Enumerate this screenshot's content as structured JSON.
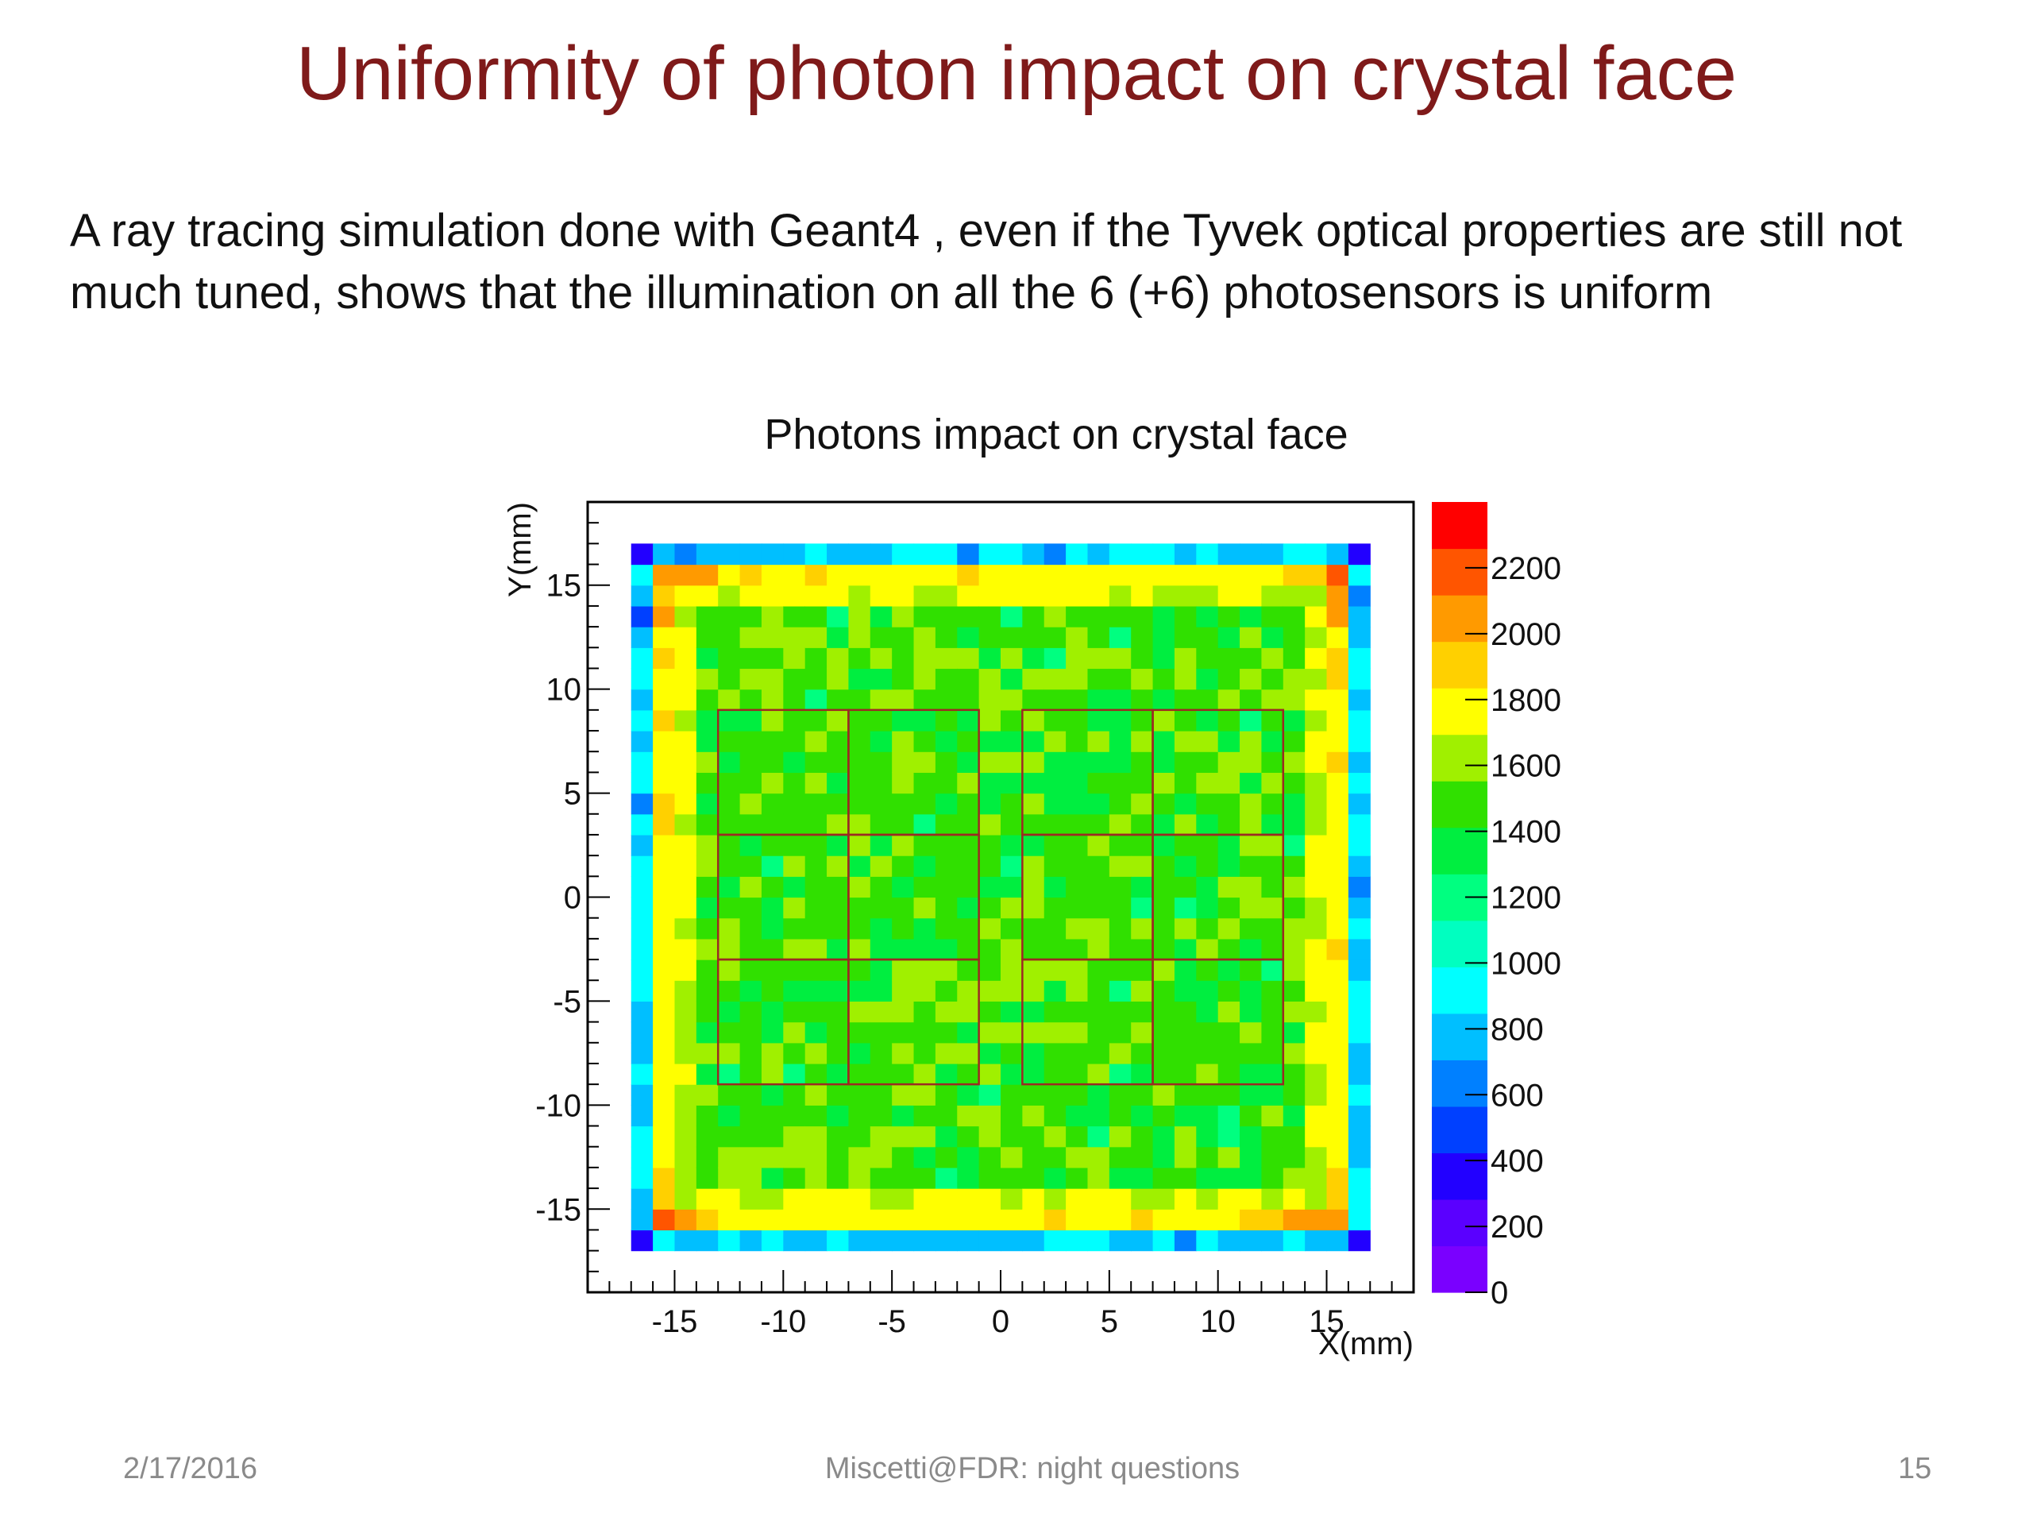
{
  "slide": {
    "title": "Uniformity of photon impact on crystal face",
    "body": "A ray tracing simulation done with Geant4 , even if the Tyvek optical properties are still not much tuned, shows that the illumination on all the 6 (+6) photosensors is uniform",
    "footer_date": "2/17/2016",
    "footer_center": "Miscetti@FDR: night questions",
    "page_number": "15"
  },
  "chart_data": {
    "type": "heatmap",
    "title": "Photons impact on crystal face",
    "xlabel": "X(mm)",
    "ylabel": "Y(mm)",
    "xlim": [
      -19,
      19
    ],
    "ylim": [
      -19,
      19
    ],
    "x_ticks": [
      -15,
      -10,
      -5,
      0,
      5,
      10,
      15
    ],
    "y_ticks": [
      -15,
      -10,
      -5,
      0,
      5,
      10,
      15
    ],
    "zlim": [
      0,
      2400
    ],
    "z_ticks": [
      0,
      200,
      400,
      600,
      800,
      1000,
      1200,
      1400,
      1600,
      1800,
      2000,
      2200
    ],
    "bin_size_mm": 1,
    "occupied_x_range": [
      -17,
      17
    ],
    "occupied_y_range": [
      -17,
      17
    ],
    "region_values": {
      "outer_ring_x_or_y_abs_16_to_17": 850,
      "outer_ring_corners": 300,
      "near_edge_ring": 1800,
      "interior_typical": 1500,
      "inner_corner_peaks": 2300
    },
    "sensor_boxes": [
      {
        "x": [
          -13,
          -7
        ],
        "y": [
          3,
          9
        ]
      },
      {
        "x": [
          -7,
          -1
        ],
        "y": [
          3,
          9
        ]
      },
      {
        "x": [
          -13,
          -7
        ],
        "y": [
          -3,
          3
        ]
      },
      {
        "x": [
          -7,
          -1
        ],
        "y": [
          -3,
          3
        ]
      },
      {
        "x": [
          -13,
          -7
        ],
        "y": [
          -9,
          -3
        ]
      },
      {
        "x": [
          -7,
          -1
        ],
        "y": [
          -9,
          -3
        ]
      },
      {
        "x": [
          1,
          7
        ],
        "y": [
          3,
          9
        ]
      },
      {
        "x": [
          7,
          13
        ],
        "y": [
          3,
          9
        ]
      },
      {
        "x": [
          1,
          7
        ],
        "y": [
          -3,
          3
        ]
      },
      {
        "x": [
          7,
          13
        ],
        "y": [
          -3,
          3
        ]
      },
      {
        "x": [
          1,
          7
        ],
        "y": [
          -9,
          -3
        ]
      },
      {
        "x": [
          7,
          13
        ],
        "y": [
          -9,
          -3
        ]
      }
    ],
    "colors": {
      "sensor_box_line": "#9b2a22",
      "palette": [
        "#7a00ff",
        "#5a00ff",
        "#2200ff",
        "#0040ff",
        "#0080ff",
        "#00bfff",
        "#00ffff",
        "#00ffc0",
        "#00ff80",
        "#00ee40",
        "#30e000",
        "#a0f000",
        "#ffff00",
        "#ffd000",
        "#ff9a00",
        "#ff5500",
        "#ff0000"
      ]
    }
  }
}
